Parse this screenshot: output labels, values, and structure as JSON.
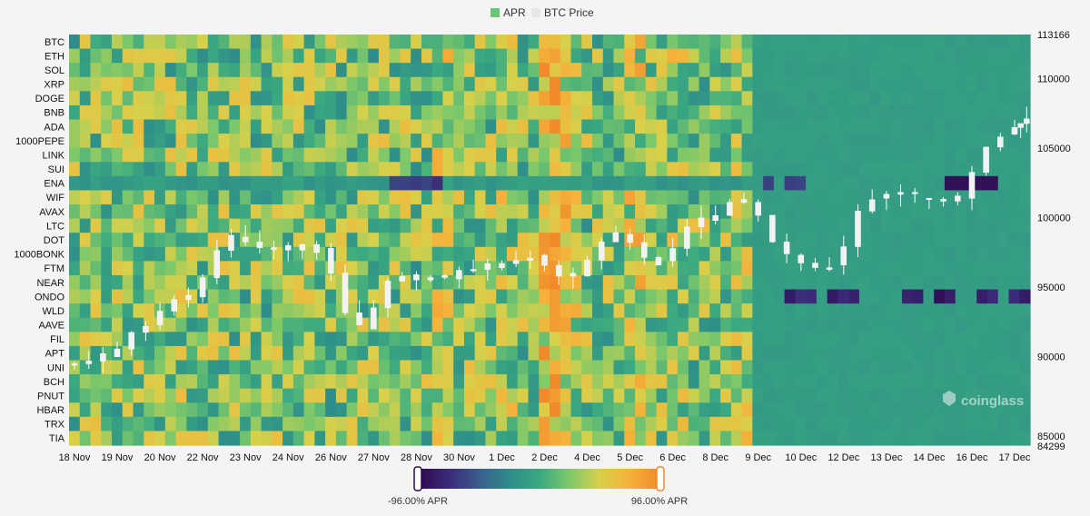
{
  "legend": [
    {
      "label": "APR",
      "color": "#6cc47a"
    },
    {
      "label": "BTC Price",
      "color": "#e6e6e6"
    }
  ],
  "watermark": "coinglass",
  "colorbar": {
    "min_label": "-96.00% APR",
    "max_label": "96.00% APR",
    "min": -96,
    "max": 96,
    "stops": [
      "#2e0a4e",
      "#3b2b7a",
      "#3a5e8c",
      "#2e8c8a",
      "#3aa880",
      "#7ec86a",
      "#d8d04a",
      "#f5b23a",
      "#f08a2a"
    ]
  },
  "chart_data": {
    "type": "heatmap",
    "title": "",
    "rows": [
      "BTC",
      "ETH",
      "SOL",
      "XRP",
      "DOGE",
      "BNB",
      "ADA",
      "1000PEPE",
      "LINK",
      "SUI",
      "ENA",
      "WIF",
      "AVAX",
      "LTC",
      "DOT",
      "1000BONK",
      "FTM",
      "NEAR",
      "ONDO",
      "WLD",
      "AAVE",
      "FIL",
      "APT",
      "UNI",
      "BCH",
      "PNUT",
      "HBAR",
      "TRX",
      "TIA"
    ],
    "x_tick_labels": [
      "18 Nov",
      "19 Nov",
      "20 Nov",
      "22 Nov",
      "23 Nov",
      "24 Nov",
      "26 Nov",
      "27 Nov",
      "28 Nov",
      "30 Nov",
      "1 Dec",
      "2 Dec",
      "4 Dec",
      "5 Dec",
      "6 Dec",
      "8 Dec",
      "9 Dec",
      "10 Dec",
      "12 Dec",
      "13 Dec",
      "14 Dec",
      "16 Dec",
      "17 Dec"
    ],
    "value_range": [
      -96,
      96
    ],
    "notes": {
      "high_apr_columns": [
        "5 Dec"
      ],
      "negative_rows_after_10_Dec": [
        "ENA",
        "ONDO"
      ]
    },
    "btc_price_axis": {
      "ticks": [
        113166,
        110000,
        105000,
        100000,
        95000,
        90000,
        85000,
        84299
      ],
      "min": 84299,
      "max": 113166
    },
    "btc_price_series": [
      {
        "date": "18 Nov",
        "close": 90000
      },
      {
        "date": "19 Nov",
        "close": 92300
      },
      {
        "date": "20 Nov",
        "close": 94300
      },
      {
        "date": "22 Nov",
        "close": 98600
      },
      {
        "date": "23 Nov",
        "close": 98000
      },
      {
        "date": "24 Nov",
        "close": 97800
      },
      {
        "date": "26 Nov",
        "close": 92000
      },
      {
        "date": "27 Nov",
        "close": 95900
      },
      {
        "date": "28 Nov",
        "close": 95600
      },
      {
        "date": "30 Nov",
        "close": 96400
      },
      {
        "date": "1 Dec",
        "close": 97300
      },
      {
        "date": "2 Dec",
        "close": 95800
      },
      {
        "date": "4 Dec",
        "close": 98800
      },
      {
        "date": "5 Dec",
        "close": 96900
      },
      {
        "date": "6 Dec",
        "close": 99800
      },
      {
        "date": "8 Dec",
        "close": 101100
      },
      {
        "date": "9 Dec",
        "close": 97300
      },
      {
        "date": "10 Dec",
        "close": 96600
      },
      {
        "date": "12 Dec",
        "close": 101400
      },
      {
        "date": "13 Dec",
        "close": 101400
      },
      {
        "date": "14 Dec",
        "close": 101400
      },
      {
        "date": "16 Dec",
        "close": 106000
      },
      {
        "date": "17 Dec",
        "close": 106800
      }
    ]
  }
}
